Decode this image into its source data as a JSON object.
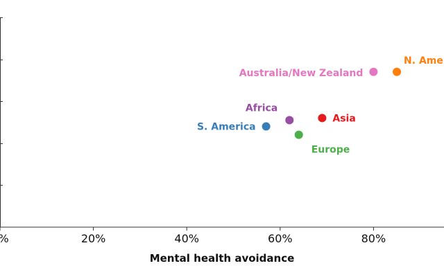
{
  "chart_data": {
    "type": "scatter",
    "title": "",
    "xlabel": "Mental health avoidance",
    "ylabel": "",
    "xlim": [
      0,
      0.95
    ],
    "ylim": [
      0,
      0.5
    ],
    "x_ticks": [
      0,
      0.2,
      0.4,
      0.6,
      0.8
    ],
    "x_tick_labels": [
      "0%",
      "20%",
      "40%",
      "60%",
      "80%"
    ],
    "y_ticks": [
      0.1,
      0.2,
      0.3,
      0.4,
      0.5
    ],
    "grid": false,
    "points": [
      {
        "name": "N. America",
        "x": 0.85,
        "y": 0.37,
        "color": "#ff7f0e"
      },
      {
        "name": "Australia/New Zealand",
        "x": 0.8,
        "y": 0.37,
        "color": "#e377c2"
      },
      {
        "name": "Africa",
        "x": 0.62,
        "y": 0.255,
        "color": "#984ea3"
      },
      {
        "name": "Asia",
        "x": 0.69,
        "y": 0.26,
        "color": "#e41a1c"
      },
      {
        "name": "S. America",
        "x": 0.57,
        "y": 0.24,
        "color": "#377eb8"
      },
      {
        "name": "Europe",
        "x": 0.64,
        "y": 0.22,
        "color": "#4daf4a"
      }
    ]
  }
}
